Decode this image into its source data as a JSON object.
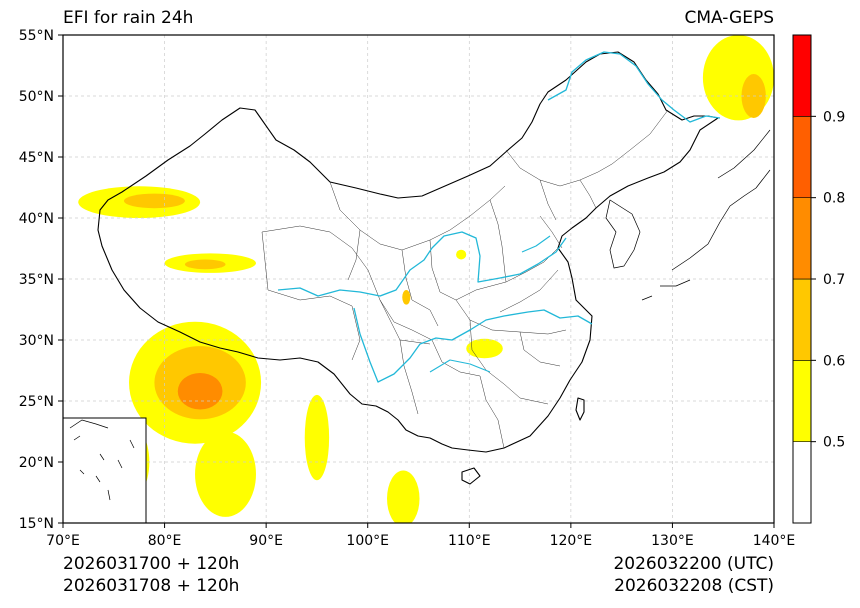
{
  "header": {
    "title": "EFI for rain 24h",
    "source": "CMA-GEPS"
  },
  "footer": {
    "init_utc": "2026031700 + 120h",
    "init_cst": "2026031708 + 120h",
    "valid_utc": "2026032200 (UTC)",
    "valid_cst": "2026032208 (CST)"
  },
  "map": {
    "lon_range": [
      70,
      140
    ],
    "lat_range": [
      15,
      55
    ],
    "lon_ticks": [
      {
        "value": 70,
        "label": "70°E"
      },
      {
        "value": 80,
        "label": "80°E"
      },
      {
        "value": 90,
        "label": "90°E"
      },
      {
        "value": 100,
        "label": "100°E"
      },
      {
        "value": 110,
        "label": "110°E"
      },
      {
        "value": 120,
        "label": "120°E"
      },
      {
        "value": 130,
        "label": "130°E"
      },
      {
        "value": 140,
        "label": "140°E"
      }
    ],
    "lat_ticks": [
      {
        "value": 15,
        "label": "15°N"
      },
      {
        "value": 20,
        "label": "20°N"
      },
      {
        "value": 25,
        "label": "25°N"
      },
      {
        "value": 30,
        "label": "30°N"
      },
      {
        "value": 35,
        "label": "35°N"
      },
      {
        "value": 40,
        "label": "40°N"
      },
      {
        "value": 45,
        "label": "45°N"
      },
      {
        "value": 50,
        "label": "50°N"
      },
      {
        "value": 55,
        "label": "55°N"
      }
    ],
    "colors": {
      "border": "#000000",
      "rivers": "#22b8d8",
      "grid": "#cccccc"
    }
  },
  "colorbar": {
    "levels": [
      {
        "min": 0.4,
        "max": 0.5,
        "color": "#ffffff"
      },
      {
        "min": 0.5,
        "max": 0.6,
        "color": "#ffff00"
      },
      {
        "min": 0.6,
        "max": 0.7,
        "color": "#ffc800"
      },
      {
        "min": 0.7,
        "max": 0.8,
        "color": "#ff8c00"
      },
      {
        "min": 0.8,
        "max": 0.9,
        "color": "#ff5f00"
      },
      {
        "min": 0.9,
        "max": 1.0,
        "color": "#ff0000"
      }
    ],
    "labels": [
      {
        "value": 0.5,
        "label": "0.5"
      },
      {
        "value": 0.6,
        "label": "0.6"
      },
      {
        "value": 0.7,
        "label": "0.7"
      },
      {
        "value": 0.8,
        "label": "0.8"
      },
      {
        "value": 0.9,
        "label": "0.9"
      }
    ]
  },
  "efi_areas": [
    {
      "name": "northeast-corner-yellow",
      "lon": 136.5,
      "lat": 51.5,
      "rx": 3.5,
      "ry": 3.5,
      "level": 0.55
    },
    {
      "name": "northeast-corner-orange",
      "lon": 138,
      "lat": 50,
      "rx": 1.2,
      "ry": 1.8,
      "level": 0.65
    },
    {
      "name": "tarim-north-yellow",
      "lon": 77.5,
      "lat": 41.3,
      "rx": 6,
      "ry": 1.3,
      "level": 0.55
    },
    {
      "name": "tarim-north-orange",
      "lon": 79,
      "lat": 41.4,
      "rx": 3,
      "ry": 0.6,
      "level": 0.65
    },
    {
      "name": "kunlun-yellow",
      "lon": 84.5,
      "lat": 36.3,
      "rx": 4.5,
      "ry": 0.8,
      "level": 0.55
    },
    {
      "name": "kunlun-orange",
      "lon": 84,
      "lat": 36.2,
      "rx": 2,
      "ry": 0.4,
      "level": 0.65
    },
    {
      "name": "tibet-south-yellow",
      "lon": 83,
      "lat": 26.5,
      "rx": 6.5,
      "ry": 5,
      "level": 0.55
    },
    {
      "name": "tibet-south-gold",
      "lon": 83.5,
      "lat": 26.5,
      "rx": 4.5,
      "ry": 3,
      "level": 0.65
    },
    {
      "name": "tibet-south-orange",
      "lon": 83.5,
      "lat": 25.8,
      "rx": 2.2,
      "ry": 1.5,
      "level": 0.75
    },
    {
      "name": "indo-ganges-yellow",
      "lon": 76,
      "lat": 20,
      "rx": 2.5,
      "ry": 3.5,
      "level": 0.55
    },
    {
      "name": "bay-of-bengal-yellow",
      "lon": 86,
      "lat": 19,
      "rx": 3,
      "ry": 3.5,
      "level": 0.55
    },
    {
      "name": "myanmar-yellow",
      "lon": 95,
      "lat": 22,
      "rx": 1.2,
      "ry": 3.5,
      "level": 0.55
    },
    {
      "name": "indochina-yellow",
      "lon": 103.5,
      "lat": 17,
      "rx": 1.6,
      "ry": 2.3,
      "level": 0.55
    },
    {
      "name": "hubei-yellow",
      "lon": 111.5,
      "lat": 29.3,
      "rx": 1.8,
      "ry": 0.8,
      "level": 0.55
    },
    {
      "name": "gansu-gold",
      "lon": 103.8,
      "lat": 33.5,
      "rx": 0.4,
      "ry": 0.6,
      "level": 0.65
    },
    {
      "name": "ningxia-yellow",
      "lon": 109.2,
      "lat": 37,
      "rx": 0.5,
      "ry": 0.4,
      "level": 0.55
    }
  ]
}
